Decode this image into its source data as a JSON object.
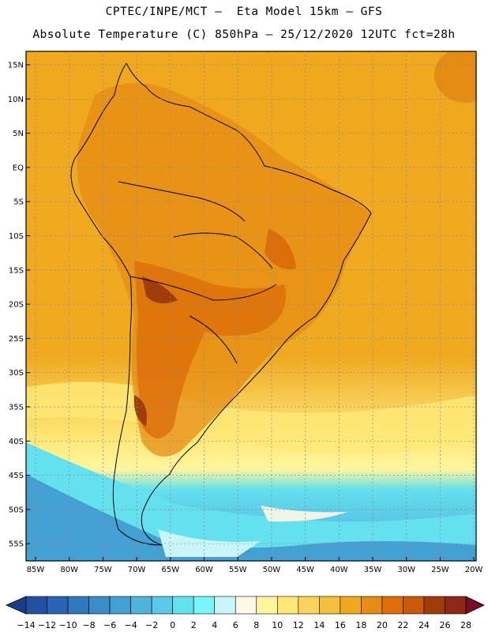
{
  "header": {
    "line1": "CPTEC/INPE/MCT –  Eta Model 15km – GFS",
    "line2": "Absolute Temperature (C) 850hPa – 25/12/2020 12UTC fct=28h"
  },
  "map": {
    "lat_labels": [
      "15N",
      "10N",
      "5N",
      "EQ",
      "5S",
      "10S",
      "15S",
      "20S",
      "25S",
      "30S",
      "35S",
      "40S",
      "45S",
      "50S",
      "55S"
    ],
    "lon_labels": [
      "85W",
      "80W",
      "75W",
      "70W",
      "65W",
      "60W",
      "55W",
      "50W",
      "45W",
      "40W",
      "35W",
      "30W",
      "25W",
      "20W"
    ]
  },
  "colorbar": {
    "labels": [
      "-14",
      "-12",
      "-10",
      "-8",
      "-6",
      "-4",
      "-2",
      "0",
      "2",
      "4",
      "6",
      "8",
      "10",
      "12",
      "14",
      "16",
      "18",
      "20",
      "22",
      "24",
      "26",
      "28"
    ],
    "colors": [
      "#1e3c8c",
      "#2350a0",
      "#2a64b4",
      "#3278be",
      "#3a8cc8",
      "#44a0d2",
      "#50b4dc",
      "#5ac8e6",
      "#64e0ee",
      "#78f5fa",
      "#c8f5fa",
      "#fff8e6",
      "#fff5a0",
      "#ffe878",
      "#f8d25a",
      "#f5be3c",
      "#f0a81e",
      "#e68c14",
      "#dc6e0a",
      "#c85a0a",
      "#a03c0a",
      "#8c2814",
      "#780a2a"
    ]
  }
}
